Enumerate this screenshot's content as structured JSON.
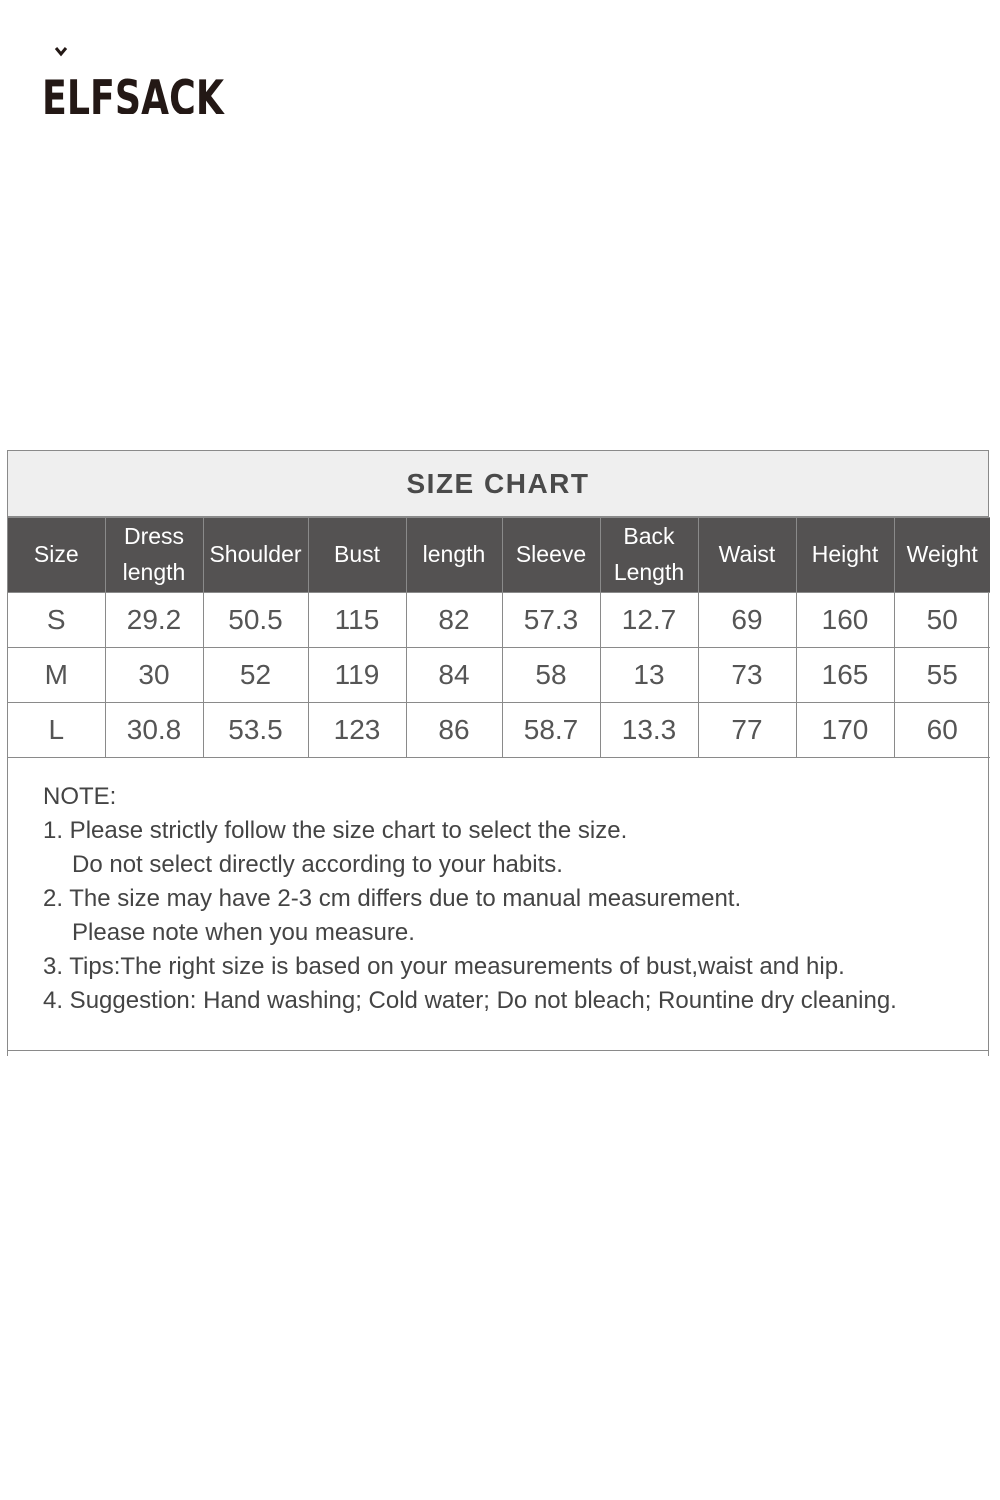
{
  "brand": {
    "logo_text": "ELFSACK"
  },
  "size_chart": {
    "title": "SIZE CHART",
    "headers": [
      "Size",
      "Dress length",
      "Shoulder",
      "Bust",
      "length",
      "Sleeve",
      "Back Length",
      "Waist",
      "Height",
      "Weight"
    ],
    "rows": [
      [
        "S",
        "29.2",
        "50.5",
        "115",
        "82",
        "57.3",
        "12.7",
        "69",
        "160",
        "50"
      ],
      [
        "M",
        "30",
        "52",
        "119",
        "84",
        "58",
        "13",
        "73",
        "165",
        "55"
      ],
      [
        "L",
        "30.8",
        "53.5",
        "123",
        "86",
        "58.7",
        "13.3",
        "77",
        "170",
        "60"
      ]
    ]
  },
  "notes": {
    "heading": "NOTE:",
    "lines": [
      "1. Please strictly follow the size chart to select the size.",
      "Do not select directly according to your habits.",
      "2. The size may have 2-3 cm differs due to manual measurement.",
      "Please note when you measure.",
      "3. Tips:The right size is based on your measurements of bust,waist and hip.",
      "4. Suggestion: Hand washing; Cold water; Do not bleach; Rountine dry cleaning."
    ]
  }
}
